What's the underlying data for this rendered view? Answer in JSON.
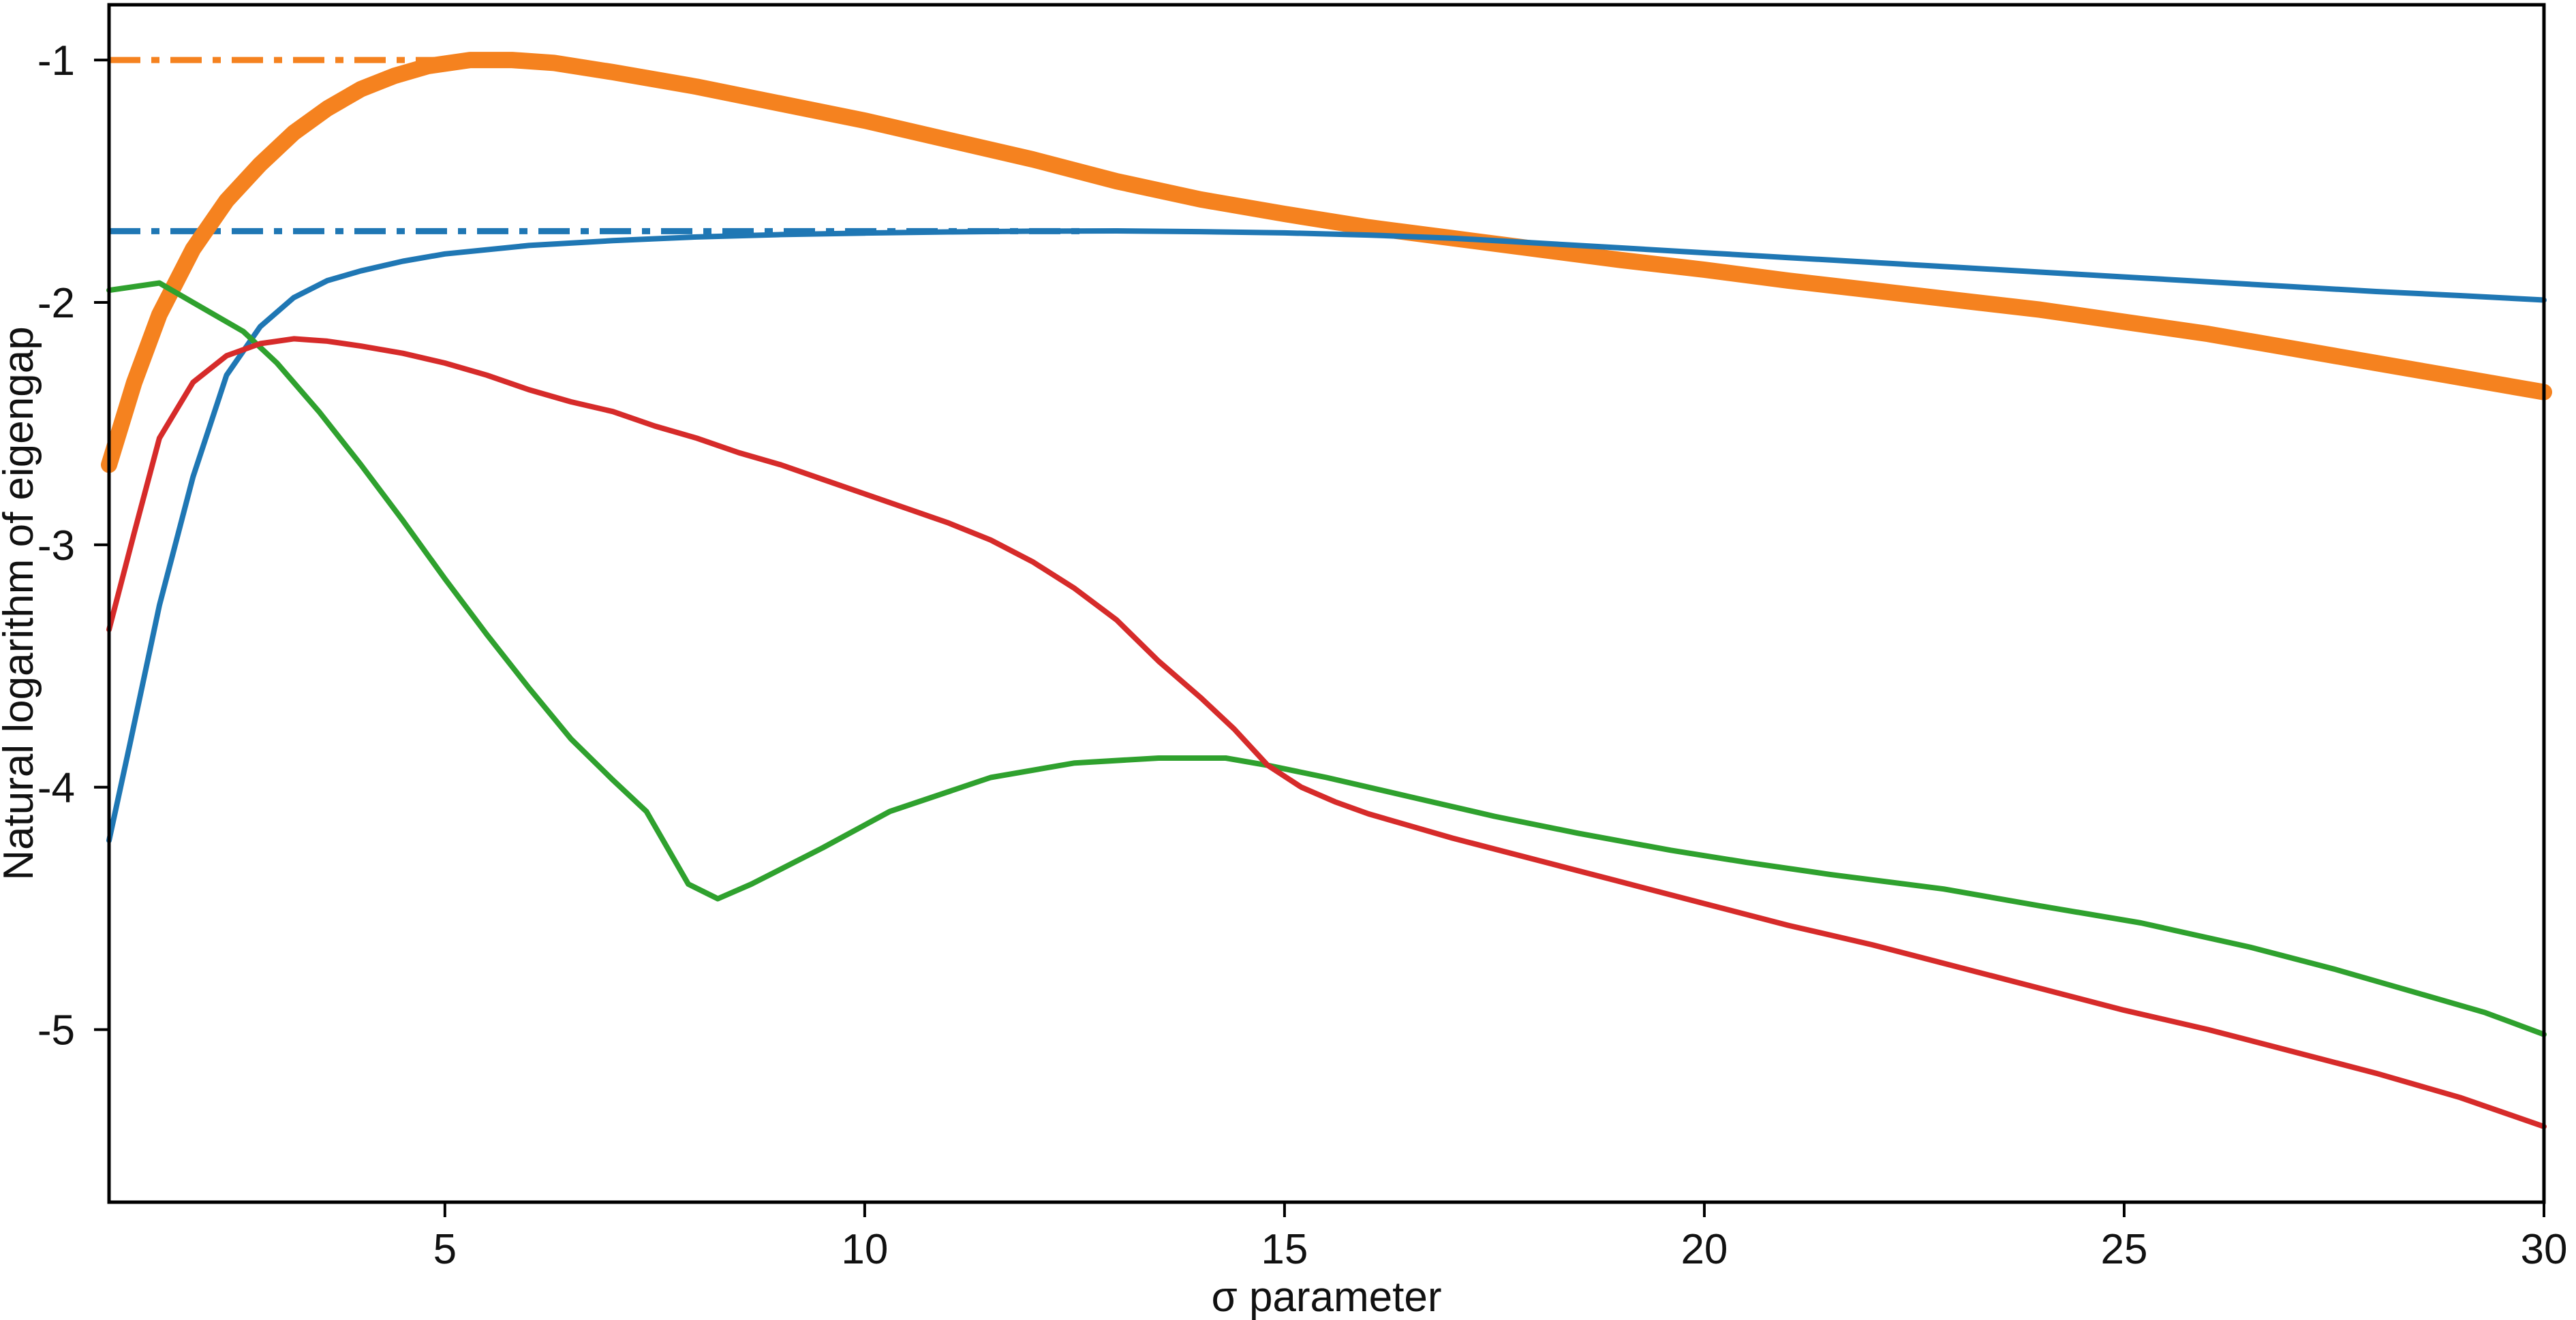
{
  "figure": {
    "background_color": "#ffffff",
    "axis_color": "#000000"
  },
  "chart_data": {
    "type": "line",
    "title": "",
    "xlabel": "σ parameter",
    "ylabel": "Natural logarithm of eigengap",
    "x_range": [
      1,
      30
    ],
    "y_range": [
      -5.712,
      -0.772
    ],
    "x_ticks": [
      5,
      10,
      15,
      20,
      25,
      30
    ],
    "y_ticks": [
      -1,
      -2,
      -3,
      -4,
      -5
    ],
    "grid": false,
    "legend_position": "none",
    "reference_lines": [
      {
        "name": "orange-max-reference",
        "value": -1.0,
        "color": "#f5821f",
        "style": "dash-dot",
        "x_start": 1,
        "x_end": 5.6,
        "width": 9
      },
      {
        "name": "blue-max-reference",
        "value": -1.706,
        "color": "#1f77b4",
        "style": "dash-dot",
        "x_start": 1,
        "x_end": 12.6,
        "width": 9
      }
    ],
    "series": [
      {
        "name": "orange-curve",
        "color": "#f5821f",
        "width": 24,
        "points": [
          [
            1,
            -2.67
          ],
          [
            1.3,
            -2.33
          ],
          [
            1.6,
            -2.05
          ],
          [
            2,
            -1.78
          ],
          [
            2.4,
            -1.58
          ],
          [
            2.8,
            -1.43
          ],
          [
            3.2,
            -1.3
          ],
          [
            3.6,
            -1.2
          ],
          [
            4,
            -1.12
          ],
          [
            4.4,
            -1.065
          ],
          [
            4.8,
            -1.025
          ],
          [
            5.3,
            -1.0
          ],
          [
            5.8,
            -1.0
          ],
          [
            6.3,
            -1.012
          ],
          [
            7,
            -1.05
          ],
          [
            8,
            -1.11
          ],
          [
            9,
            -1.18
          ],
          [
            10,
            -1.25
          ],
          [
            11,
            -1.33
          ],
          [
            12,
            -1.41
          ],
          [
            13,
            -1.5
          ],
          [
            14,
            -1.575
          ],
          [
            15,
            -1.635
          ],
          [
            16,
            -1.69
          ],
          [
            17,
            -1.735
          ],
          [
            18,
            -1.78
          ],
          [
            19,
            -1.825
          ],
          [
            20,
            -1.865
          ],
          [
            21,
            -1.91
          ],
          [
            22,
            -1.95
          ],
          [
            23,
            -1.99
          ],
          [
            24,
            -2.03
          ],
          [
            25,
            -2.08
          ],
          [
            26,
            -2.13
          ],
          [
            27,
            -2.19
          ],
          [
            28,
            -2.25
          ],
          [
            29,
            -2.31
          ],
          [
            30,
            -2.37
          ]
        ]
      },
      {
        "name": "blue-curve",
        "color": "#1f77b4",
        "width": 8,
        "points": [
          [
            1,
            -4.22
          ],
          [
            1.25,
            -3.82
          ],
          [
            1.6,
            -3.25
          ],
          [
            2,
            -2.72
          ],
          [
            2.4,
            -2.3
          ],
          [
            2.8,
            -2.1
          ],
          [
            3.2,
            -1.98
          ],
          [
            3.6,
            -1.91
          ],
          [
            4,
            -1.87
          ],
          [
            4.5,
            -1.83
          ],
          [
            5,
            -1.8
          ],
          [
            6,
            -1.765
          ],
          [
            7,
            -1.745
          ],
          [
            8,
            -1.73
          ],
          [
            9,
            -1.72
          ],
          [
            10,
            -1.714
          ],
          [
            11,
            -1.709
          ],
          [
            12,
            -1.706
          ],
          [
            13,
            -1.705
          ],
          [
            14,
            -1.708
          ],
          [
            15,
            -1.713
          ],
          [
            16,
            -1.722
          ],
          [
            17,
            -1.735
          ],
          [
            18,
            -1.755
          ],
          [
            19,
            -1.775
          ],
          [
            20,
            -1.795
          ],
          [
            21,
            -1.815
          ],
          [
            22,
            -1.835
          ],
          [
            23,
            -1.855
          ],
          [
            24,
            -1.875
          ],
          [
            25,
            -1.895
          ],
          [
            26,
            -1.915
          ],
          [
            27,
            -1.935
          ],
          [
            28,
            -1.955
          ],
          [
            29,
            -1.972
          ],
          [
            30,
            -1.99
          ]
        ]
      },
      {
        "name": "green-curve",
        "color": "#2fa12e",
        "width": 8,
        "points": [
          [
            1,
            -1.95
          ],
          [
            1.6,
            -1.92
          ],
          [
            2.1,
            -2.02
          ],
          [
            2.6,
            -2.12
          ],
          [
            3,
            -2.25
          ],
          [
            3.5,
            -2.45
          ],
          [
            4,
            -2.67
          ],
          [
            4.5,
            -2.9
          ],
          [
            5,
            -3.14
          ],
          [
            5.5,
            -3.37
          ],
          [
            6,
            -3.59
          ],
          [
            6.5,
            -3.8
          ],
          [
            7,
            -3.97
          ],
          [
            7.4,
            -4.1
          ],
          [
            7.9,
            -4.4
          ],
          [
            8.25,
            -4.46
          ],
          [
            8.65,
            -4.4
          ],
          [
            9.5,
            -4.25
          ],
          [
            10.3,
            -4.1
          ],
          [
            11.5,
            -3.96
          ],
          [
            12.5,
            -3.9
          ],
          [
            13.5,
            -3.88
          ],
          [
            14.3,
            -3.88
          ],
          [
            14.8,
            -3.91
          ],
          [
            15.5,
            -3.96
          ],
          [
            16.5,
            -4.04
          ],
          [
            17.5,
            -4.12
          ],
          [
            18.5,
            -4.19
          ],
          [
            19.6,
            -4.26
          ],
          [
            20.5,
            -4.31
          ],
          [
            21.5,
            -4.36
          ],
          [
            22.85,
            -4.42
          ],
          [
            24,
            -4.49
          ],
          [
            25.2,
            -4.56
          ],
          [
            26.5,
            -4.66
          ],
          [
            27.5,
            -4.75
          ],
          [
            28.5,
            -4.85
          ],
          [
            29.3,
            -4.93
          ],
          [
            30,
            -5.02
          ]
        ]
      },
      {
        "name": "red-curve",
        "color": "#d62b2a",
        "width": 8,
        "points": [
          [
            1,
            -3.35
          ],
          [
            1.3,
            -2.95
          ],
          [
            1.6,
            -2.56
          ],
          [
            2,
            -2.33
          ],
          [
            2.4,
            -2.22
          ],
          [
            2.8,
            -2.17
          ],
          [
            3.2,
            -2.15
          ],
          [
            3.6,
            -2.16
          ],
          [
            4,
            -2.18
          ],
          [
            4.5,
            -2.21
          ],
          [
            5,
            -2.25
          ],
          [
            5.5,
            -2.3
          ],
          [
            6,
            -2.36
          ],
          [
            6.5,
            -2.41
          ],
          [
            7,
            -2.45
          ],
          [
            7.5,
            -2.51
          ],
          [
            8,
            -2.56
          ],
          [
            8.5,
            -2.62
          ],
          [
            9,
            -2.67
          ],
          [
            9.5,
            -2.73
          ],
          [
            10,
            -2.79
          ],
          [
            10.5,
            -2.85
          ],
          [
            11,
            -2.91
          ],
          [
            11.5,
            -2.98
          ],
          [
            12,
            -3.07
          ],
          [
            12.5,
            -3.18
          ],
          [
            13,
            -3.31
          ],
          [
            13.5,
            -3.48
          ],
          [
            14,
            -3.63
          ],
          [
            14.4,
            -3.76
          ],
          [
            14.8,
            -3.91
          ],
          [
            15.2,
            -4.0
          ],
          [
            15.6,
            -4.06
          ],
          [
            16,
            -4.11
          ],
          [
            16.5,
            -4.16
          ],
          [
            17,
            -4.21
          ],
          [
            18,
            -4.3
          ],
          [
            19,
            -4.39
          ],
          [
            20,
            -4.48
          ],
          [
            21,
            -4.57
          ],
          [
            22,
            -4.65
          ],
          [
            23,
            -4.74
          ],
          [
            24,
            -4.83
          ],
          [
            25,
            -4.92
          ],
          [
            26,
            -5.0
          ],
          [
            27,
            -5.09
          ],
          [
            28,
            -5.18
          ],
          [
            29,
            -5.28
          ],
          [
            30,
            -5.4
          ]
        ]
      }
    ]
  }
}
